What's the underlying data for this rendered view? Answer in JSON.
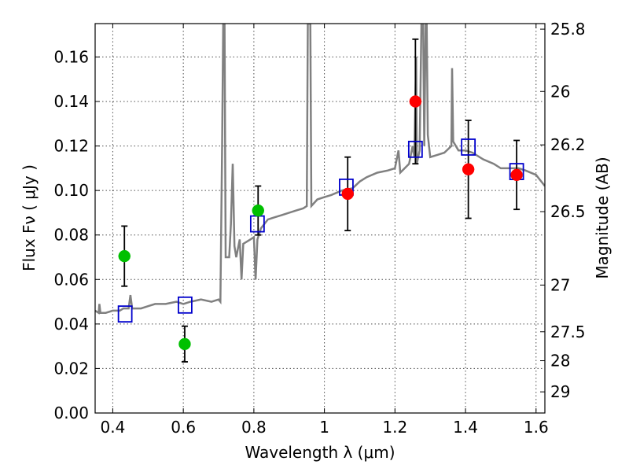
{
  "chart_data": {
    "type": "scatter",
    "title": "",
    "xlabel": "Wavelength  λ (μm)",
    "ylabel": "Flux  Fν  ( μJy )",
    "y2label": "Magnitude (AB)",
    "xlim": [
      0.35,
      1.625
    ],
    "ylim": [
      0.0,
      0.175
    ],
    "grid": true,
    "x_ticks": [
      0.4,
      0.6,
      0.8,
      1.0,
      1.2,
      1.4,
      1.6
    ],
    "x_tick_labels": [
      "0.4",
      "0.6",
      "0.8",
      "1",
      "1.2",
      "1.4",
      "1.6"
    ],
    "y_ticks": [
      0.0,
      0.02,
      0.04,
      0.06,
      0.08,
      0.1,
      0.12,
      0.14,
      0.16
    ],
    "y_tick_labels": [
      "0.00",
      "0.02",
      "0.04",
      "0.06",
      "0.08",
      "0.10",
      "0.12",
      "0.14",
      "0.16"
    ],
    "y2_ticks": [
      {
        "flux": 0.1725,
        "label": "25.8"
      },
      {
        "flux": 0.1445,
        "label": "26"
      },
      {
        "flux": 0.1205,
        "label": "26.2"
      },
      {
        "flux": 0.0905,
        "label": "26.5"
      },
      {
        "flux": 0.0575,
        "label": "27"
      },
      {
        "flux": 0.0365,
        "label": "27.5"
      },
      {
        "flux": 0.0235,
        "label": "28"
      },
      {
        "flux": 0.0095,
        "label": "29"
      }
    ],
    "series": [
      {
        "name": "model spectrum",
        "kind": "line",
        "color": "#808080",
        "points": [
          [
            0.35,
            0.046
          ],
          [
            0.36,
            0.045
          ],
          [
            0.362,
            0.049
          ],
          [
            0.365,
            0.045
          ],
          [
            0.38,
            0.045
          ],
          [
            0.4,
            0.046
          ],
          [
            0.42,
            0.046
          ],
          [
            0.43,
            0.047
          ],
          [
            0.445,
            0.047
          ],
          [
            0.45,
            0.053
          ],
          [
            0.455,
            0.047
          ],
          [
            0.48,
            0.047
          ],
          [
            0.5,
            0.048
          ],
          [
            0.52,
            0.049
          ],
          [
            0.55,
            0.049
          ],
          [
            0.58,
            0.05
          ],
          [
            0.6,
            0.049
          ],
          [
            0.62,
            0.05
          ],
          [
            0.65,
            0.051
          ],
          [
            0.68,
            0.05
          ],
          [
            0.7,
            0.051
          ],
          [
            0.705,
            0.05
          ],
          [
            0.71,
            0.12
          ],
          [
            0.713,
            0.175
          ],
          [
            0.717,
            0.175
          ],
          [
            0.72,
            0.07
          ],
          [
            0.73,
            0.07
          ],
          [
            0.735,
            0.085
          ],
          [
            0.74,
            0.112
          ],
          [
            0.745,
            0.075
          ],
          [
            0.75,
            0.07
          ],
          [
            0.76,
            0.078
          ],
          [
            0.765,
            0.06
          ],
          [
            0.77,
            0.076
          ],
          [
            0.78,
            0.077
          ],
          [
            0.79,
            0.078
          ],
          [
            0.8,
            0.079
          ],
          [
            0.805,
            0.06
          ],
          [
            0.81,
            0.078
          ],
          [
            0.82,
            0.083
          ],
          [
            0.83,
            0.085
          ],
          [
            0.84,
            0.087
          ],
          [
            0.86,
            0.088
          ],
          [
            0.88,
            0.089
          ],
          [
            0.9,
            0.09
          ],
          [
            0.92,
            0.091
          ],
          [
            0.94,
            0.092
          ],
          [
            0.95,
            0.093
          ],
          [
            0.953,
            0.175
          ],
          [
            0.96,
            0.175
          ],
          [
            0.963,
            0.093
          ],
          [
            0.98,
            0.096
          ],
          [
            1.0,
            0.097
          ],
          [
            1.02,
            0.098
          ],
          [
            1.05,
            0.1
          ],
          [
            1.08,
            0.101
          ],
          [
            1.1,
            0.104
          ],
          [
            1.12,
            0.106
          ],
          [
            1.15,
            0.108
          ],
          [
            1.18,
            0.109
          ],
          [
            1.2,
            0.11
          ],
          [
            1.21,
            0.118
          ],
          [
            1.215,
            0.108
          ],
          [
            1.24,
            0.112
          ],
          [
            1.25,
            0.12
          ],
          [
            1.255,
            0.115
          ],
          [
            1.26,
            0.16
          ],
          [
            1.262,
            0.112
          ],
          [
            1.27,
            0.118
          ],
          [
            1.275,
            0.175
          ],
          [
            1.28,
            0.175
          ],
          [
            1.283,
            0.12
          ],
          [
            1.287,
            0.175
          ],
          [
            1.29,
            0.175
          ],
          [
            1.293,
            0.125
          ],
          [
            1.3,
            0.115
          ],
          [
            1.32,
            0.116
          ],
          [
            1.34,
            0.117
          ],
          [
            1.36,
            0.12
          ],
          [
            1.362,
            0.155
          ],
          [
            1.365,
            0.122
          ],
          [
            1.38,
            0.118
          ],
          [
            1.4,
            0.118
          ],
          [
            1.42,
            0.117
          ],
          [
            1.45,
            0.114
          ],
          [
            1.48,
            0.112
          ],
          [
            1.5,
            0.11
          ],
          [
            1.52,
            0.11
          ],
          [
            1.55,
            0.11
          ],
          [
            1.57,
            0.109
          ],
          [
            1.6,
            0.107
          ],
          [
            1.625,
            0.102
          ]
        ]
      },
      {
        "name": "green points",
        "kind": "marker-errorbar",
        "color": "#00c000",
        "points": [
          {
            "x": 0.433,
            "y": 0.0705,
            "err_low": 0.0135,
            "err_high": 0.0135
          },
          {
            "x": 0.604,
            "y": 0.031,
            "err_low": 0.008,
            "err_high": 0.008
          },
          {
            "x": 0.812,
            "y": 0.091,
            "err_low": 0.011,
            "err_high": 0.011
          }
        ]
      },
      {
        "name": "red points",
        "kind": "marker-errorbar",
        "color": "#ff0000",
        "points": [
          {
            "x": 1.066,
            "y": 0.0985,
            "err_low": 0.0165,
            "err_high": 0.0165
          },
          {
            "x": 1.258,
            "y": 0.14,
            "err_low": 0.028,
            "err_high": 0.028
          },
          {
            "x": 1.408,
            "y": 0.1095,
            "err_low": 0.022,
            "err_high": 0.022
          },
          {
            "x": 1.545,
            "y": 0.107,
            "err_low": 0.0155,
            "err_high": 0.0155
          }
        ]
      },
      {
        "name": "blue squares",
        "kind": "open-square",
        "color": "#0000cc",
        "points": [
          {
            "x": 0.435,
            "y": 0.0445
          },
          {
            "x": 0.605,
            "y": 0.0485
          },
          {
            "x": 0.81,
            "y": 0.085
          },
          {
            "x": 1.062,
            "y": 0.1015
          },
          {
            "x": 1.258,
            "y": 0.1185
          },
          {
            "x": 1.408,
            "y": 0.1195
          },
          {
            "x": 1.545,
            "y": 0.1085
          }
        ]
      }
    ]
  }
}
